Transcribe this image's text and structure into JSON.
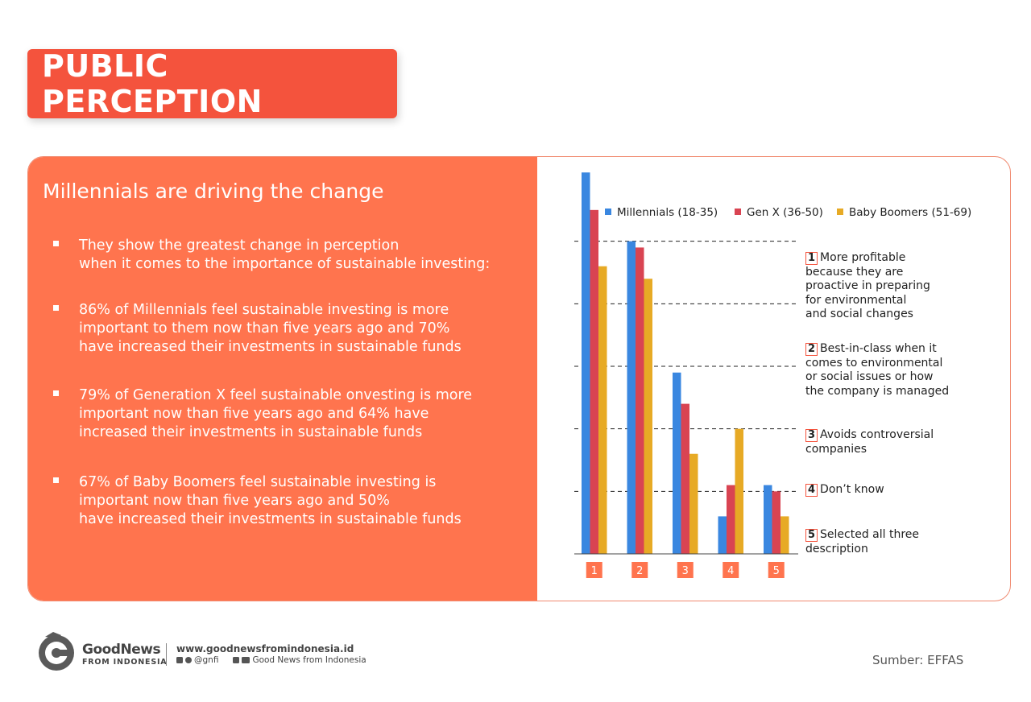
{
  "header": {
    "title": "PUBLIC PERCEPTION"
  },
  "left": {
    "title": "Millennials are driving the change",
    "bullets": [
      {
        "lines": [
          "They show the greatest change in perception",
          "when it comes to the importance of sustainable investing:"
        ]
      },
      {
        "lines": [
          "86% of Millennials feel sustainable investing is more",
          "important to them now than five years ago and 70%",
          "have increased their investments in sustainable funds"
        ]
      },
      {
        "lines": [
          "79% of Generation X feel sustainable onvesting is more",
          "important now than five years ago and 64% have",
          "increased their investments in sustainable funds"
        ]
      },
      {
        "lines": [
          "67% of Baby Boomers feel sustainable investing is",
          "important now than five years ago and 50%",
          "have increased their investments in sustainable funds"
        ]
      }
    ]
  },
  "chart_data": {
    "type": "bar",
    "title": "",
    "xlabel": "",
    "ylabel": "",
    "categories": [
      "1",
      "2",
      "3",
      "4",
      "5"
    ],
    "ylim": [
      0,
      60
    ],
    "grid": true,
    "legend_position": "top",
    "series": [
      {
        "name": "Millennials (18-35)",
        "color": "#3a87e0",
        "values": [
          61,
          50,
          29,
          6,
          11
        ]
      },
      {
        "name": "Gen X (36-50)",
        "color": "#d94452",
        "values": [
          55,
          49,
          24,
          11,
          10
        ]
      },
      {
        "name": "Baby Boomers (51-69)",
        "color": "#e7aa25",
        "values": [
          46,
          44,
          16,
          20,
          6
        ]
      }
    ]
  },
  "descriptions": [
    {
      "num": "1",
      "lines": [
        "More profitable",
        "because they are",
        "proactive in preparing",
        "for environmental",
        "and social changes"
      ]
    },
    {
      "num": "2",
      "lines": [
        "Best-in-class when it",
        "comes to environmental",
        "or social issues or how",
        "the company is managed"
      ]
    },
    {
      "num": "3",
      "lines": [
        "Avoids controversial",
        "companies"
      ]
    },
    {
      "num": "4",
      "lines": [
        "Don’t know"
      ]
    },
    {
      "num": "5",
      "lines": [
        "Selected all three",
        "description"
      ]
    }
  ],
  "footer": {
    "brand_name": "GoodNews",
    "brand_sub": "FROM INDONESIA",
    "website": "www.goodnewsfromindonesia.id",
    "social_handle": "@gnfi",
    "social_page": "Good News from Indonesia",
    "source": "Sumber: EFFAS"
  },
  "icons": {
    "logo": "dragon-logo-icon",
    "twitter": "twitter-icon",
    "instagram": "instagram-icon",
    "facebook": "facebook-icon",
    "youtube": "youtube-icon"
  },
  "colors": {
    "accent": "#f4533d",
    "panel": "#ff744e"
  }
}
